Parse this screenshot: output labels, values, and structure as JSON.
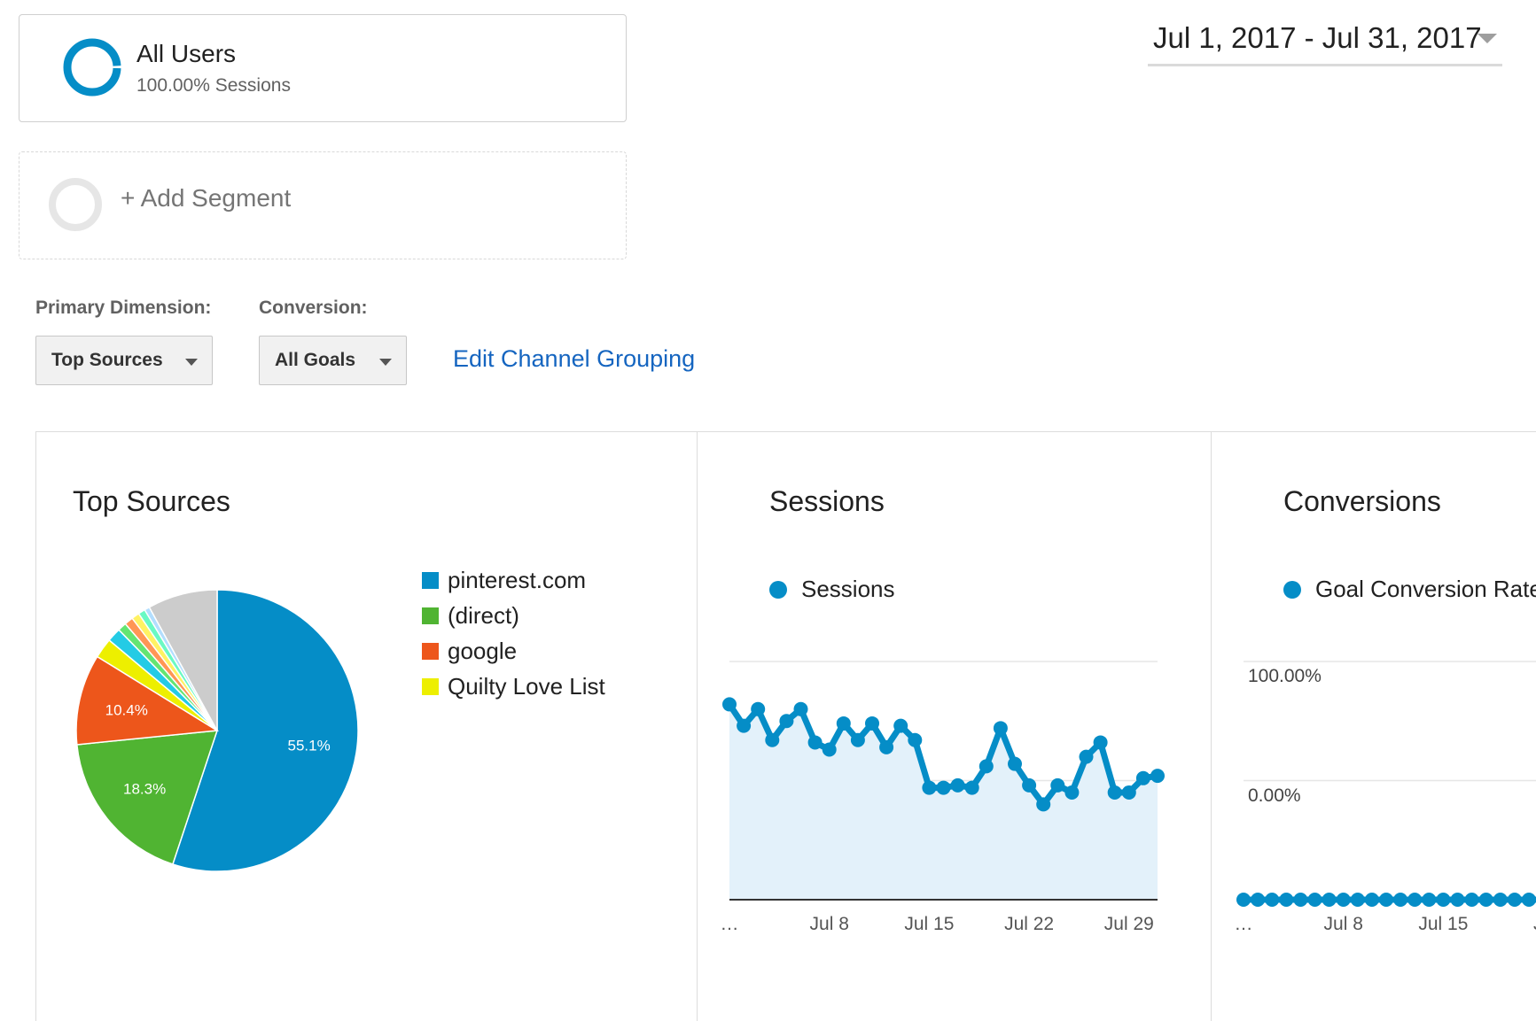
{
  "segments": {
    "primary": {
      "title": "All Users",
      "subtitle": "100.00% Sessions"
    },
    "add_label": "+ Add Segment"
  },
  "date_range": "Jul 1, 2017 - Jul 31, 2017",
  "controls": {
    "primary_dimension_label": "Primary Dimension:",
    "primary_dimension_value": "Top Sources",
    "conversion_label": "Conversion:",
    "conversion_value": "All Goals",
    "edit_link": "Edit Channel Grouping"
  },
  "colors": {
    "accent": "#058dc7",
    "link": "#1565c0",
    "sessions_area": "#e3f1fa"
  },
  "panels": {
    "top_sources": {
      "title": "Top Sources"
    },
    "sessions": {
      "title": "Sessions",
      "legend": "Sessions"
    },
    "conversions": {
      "title": "Conversions",
      "legend": "Goal Conversion Rate",
      "y_max_label": "100.00%",
      "y_min_label": "0.00%"
    }
  },
  "chart_data": [
    {
      "type": "pie",
      "title": "Top Sources",
      "legend": [
        {
          "name": "pinterest.com",
          "color": "#058dc7"
        },
        {
          "name": "(direct)",
          "color": "#50b432"
        },
        {
          "name": "google",
          "color": "#ed561b"
        },
        {
          "name": "Quilty Love List",
          "color": "#edef00"
        }
      ],
      "slices": [
        {
          "name": "pinterest.com",
          "value": 55.1,
          "label": "55.1%",
          "color": "#058dc7"
        },
        {
          "name": "(direct)",
          "value": 18.3,
          "label": "18.3%",
          "color": "#50b432"
        },
        {
          "name": "google",
          "value": 10.4,
          "label": "10.4%",
          "color": "#ed561b"
        },
        {
          "name": "Quilty Love List",
          "value": 2.3,
          "label": "",
          "color": "#edef00"
        },
        {
          "name": "",
          "value": 1.6,
          "label": "",
          "color": "#24cbe5"
        },
        {
          "name": "",
          "value": 1.0,
          "label": "",
          "color": "#64e572"
        },
        {
          "name": "",
          "value": 1.0,
          "label": "",
          "color": "#ff9655"
        },
        {
          "name": "",
          "value": 0.9,
          "label": "",
          "color": "#fff263"
        },
        {
          "name": "",
          "value": 0.8,
          "label": "",
          "color": "#6af9c4"
        },
        {
          "name": "",
          "value": 0.6,
          "label": "",
          "color": "#b2deff"
        },
        {
          "name": "",
          "value": 8.0,
          "label": "",
          "color": "#cccccc"
        }
      ]
    },
    {
      "type": "line",
      "title": "Sessions",
      "series": [
        {
          "name": "Sessions",
          "color": "#058dc7",
          "values": [
            82,
            73,
            80,
            67,
            75,
            80,
            66,
            63,
            74,
            67,
            74,
            64,
            73,
            67,
            47,
            47,
            48,
            47,
            56,
            72,
            57,
            48,
            40,
            48,
            45,
            60,
            66,
            45,
            45,
            51,
            52
          ]
        }
      ],
      "x": [
        1,
        2,
        3,
        4,
        5,
        6,
        7,
        8,
        9,
        10,
        11,
        12,
        13,
        14,
        15,
        16,
        17,
        18,
        19,
        20,
        21,
        22,
        23,
        24,
        25,
        26,
        27,
        28,
        29,
        30,
        31
      ],
      "x_tick_labels": [
        "…",
        "Jul 8",
        "Jul 15",
        "Jul 22",
        "Jul 29"
      ],
      "x_tick_positions": [
        1,
        8,
        15,
        22,
        29
      ],
      "ylim": [
        0,
        100
      ],
      "area": true
    },
    {
      "type": "line",
      "title": "Conversions",
      "series": [
        {
          "name": "Goal Conversion Rate",
          "color": "#058dc7",
          "values": [
            0,
            0,
            0,
            0,
            0,
            0,
            0,
            0,
            0,
            0,
            0,
            0,
            0,
            0,
            0,
            0,
            0,
            0,
            0,
            0,
            0,
            0
          ]
        }
      ],
      "x": [
        1,
        2,
        3,
        4,
        5,
        6,
        7,
        8,
        9,
        10,
        11,
        12,
        13,
        14,
        15,
        16,
        17,
        18,
        19,
        20,
        21,
        22
      ],
      "x_tick_labels": [
        "…",
        "Jul 8",
        "Jul 15",
        "Ju"
      ],
      "x_tick_positions": [
        1,
        8,
        15,
        22
      ],
      "ylim": [
        0,
        100
      ]
    }
  ]
}
